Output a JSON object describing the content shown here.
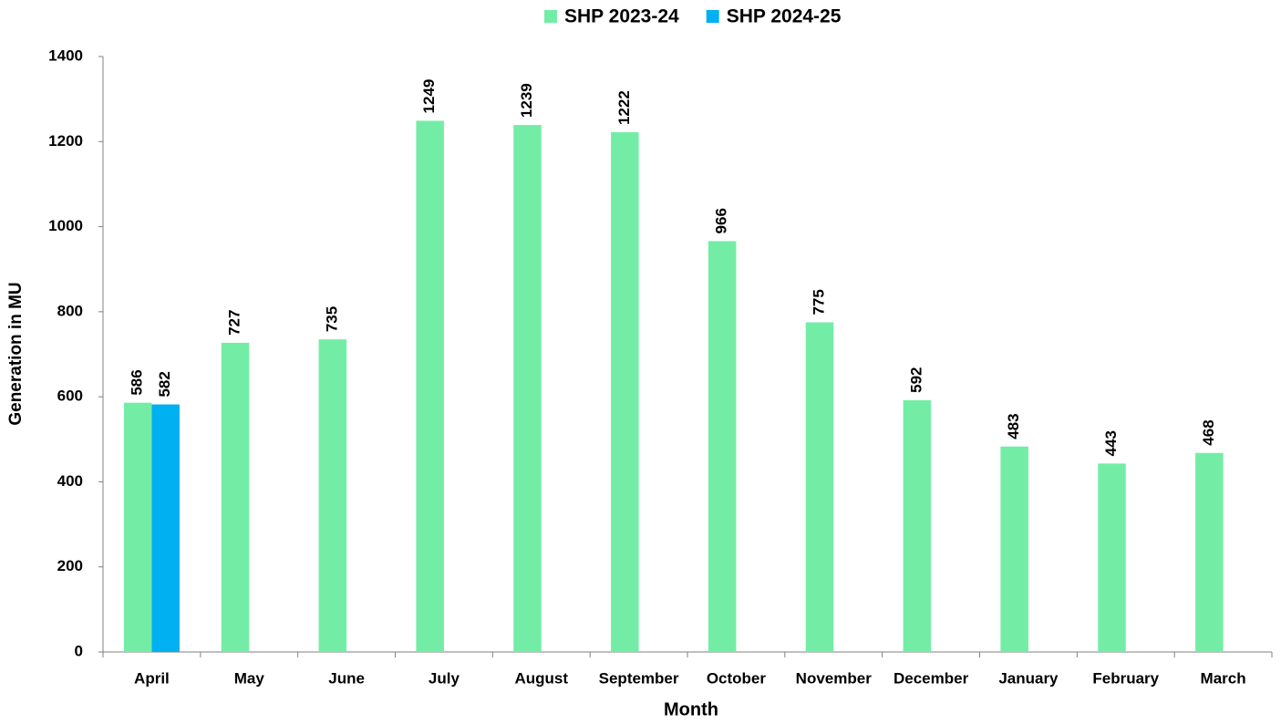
{
  "chart_data": {
    "type": "bar",
    "x_label": "Month",
    "y_label": "Generation in MU",
    "categories": [
      "April",
      "May",
      "June",
      "July",
      "August",
      "September",
      "October",
      "November",
      "December",
      "January",
      "February",
      "March"
    ],
    "series": [
      {
        "name": "SHP 2023-24",
        "color": "#73eda6",
        "values": [
          586,
          727,
          735,
          1249,
          1239,
          1222,
          966,
          775,
          592,
          483,
          443,
          468
        ]
      },
      {
        "name": "SHP 2024-25",
        "color": "#00b0f0",
        "values": [
          582,
          null,
          null,
          null,
          null,
          null,
          null,
          null,
          null,
          null,
          null,
          null
        ]
      }
    ],
    "ylim": [
      0,
      1400
    ],
    "yticks": [
      0,
      200,
      400,
      600,
      800,
      1000,
      1200,
      1400
    ],
    "grid": false,
    "legend": "top"
  }
}
